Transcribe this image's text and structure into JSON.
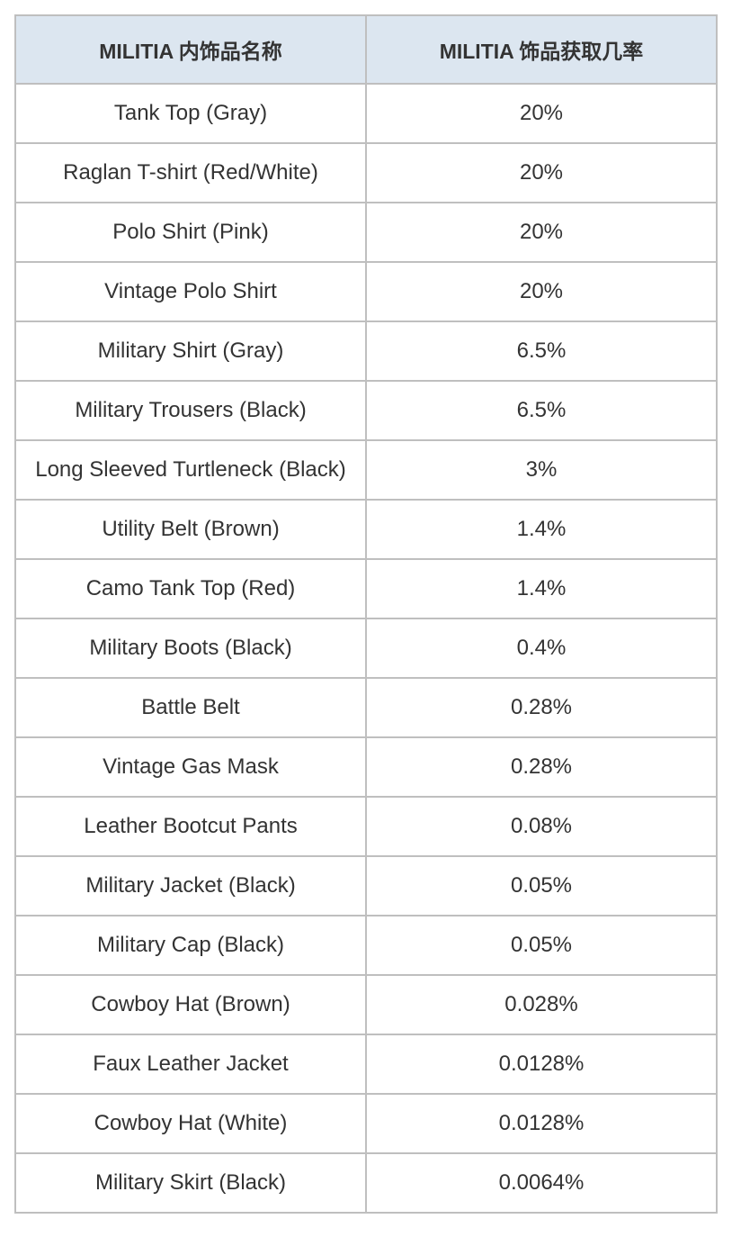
{
  "table": {
    "type": "table",
    "header_bg_color": "#dce6f0",
    "cell_bg_color": "#ffffff",
    "border_color": "#bfbfbf",
    "text_color": "#333333",
    "header_fontsize": 23,
    "cell_fontsize": 24,
    "columns": [
      {
        "label": "MILITIA 内饰品名称",
        "width_pct": 50,
        "align": "center"
      },
      {
        "label": "MILITIA  饰品获取几率",
        "width_pct": 50,
        "align": "center"
      }
    ],
    "rows": [
      {
        "name": "Tank Top (Gray)",
        "rate": "20%"
      },
      {
        "name": "Raglan T-shirt (Red/White)",
        "rate": "20%"
      },
      {
        "name": "Polo Shirt (Pink)",
        "rate": "20%"
      },
      {
        "name": "Vintage Polo Shirt",
        "rate": "20%"
      },
      {
        "name": "Military Shirt (Gray)",
        "rate": "6.5%"
      },
      {
        "name": "Military Trousers (Black)",
        "rate": "6.5%"
      },
      {
        "name": "Long Sleeved Turtleneck (Black)",
        "rate": "3%"
      },
      {
        "name": "Utility Belt (Brown)",
        "rate": "1.4%"
      },
      {
        "name": "Camo Tank Top (Red)",
        "rate": "1.4%"
      },
      {
        "name": "Military Boots (Black)",
        "rate": "0.4%"
      },
      {
        "name": "Battle Belt",
        "rate": "0.28%"
      },
      {
        "name": "Vintage Gas Mask",
        "rate": "0.28%"
      },
      {
        "name": "Leather Bootcut Pants",
        "rate": "0.08%"
      },
      {
        "name": "Military Jacket (Black)",
        "rate": "0.05%"
      },
      {
        "name": "Military Cap (Black)",
        "rate": "0.05%"
      },
      {
        "name": "Cowboy Hat (Brown)",
        "rate": "0.028%"
      },
      {
        "name": "Faux Leather Jacket",
        "rate": "0.0128%"
      },
      {
        "name": "Cowboy Hat (White)",
        "rate": "0.0128%"
      },
      {
        "name": "Military Skirt (Black)",
        "rate": "0.0064%"
      }
    ]
  }
}
